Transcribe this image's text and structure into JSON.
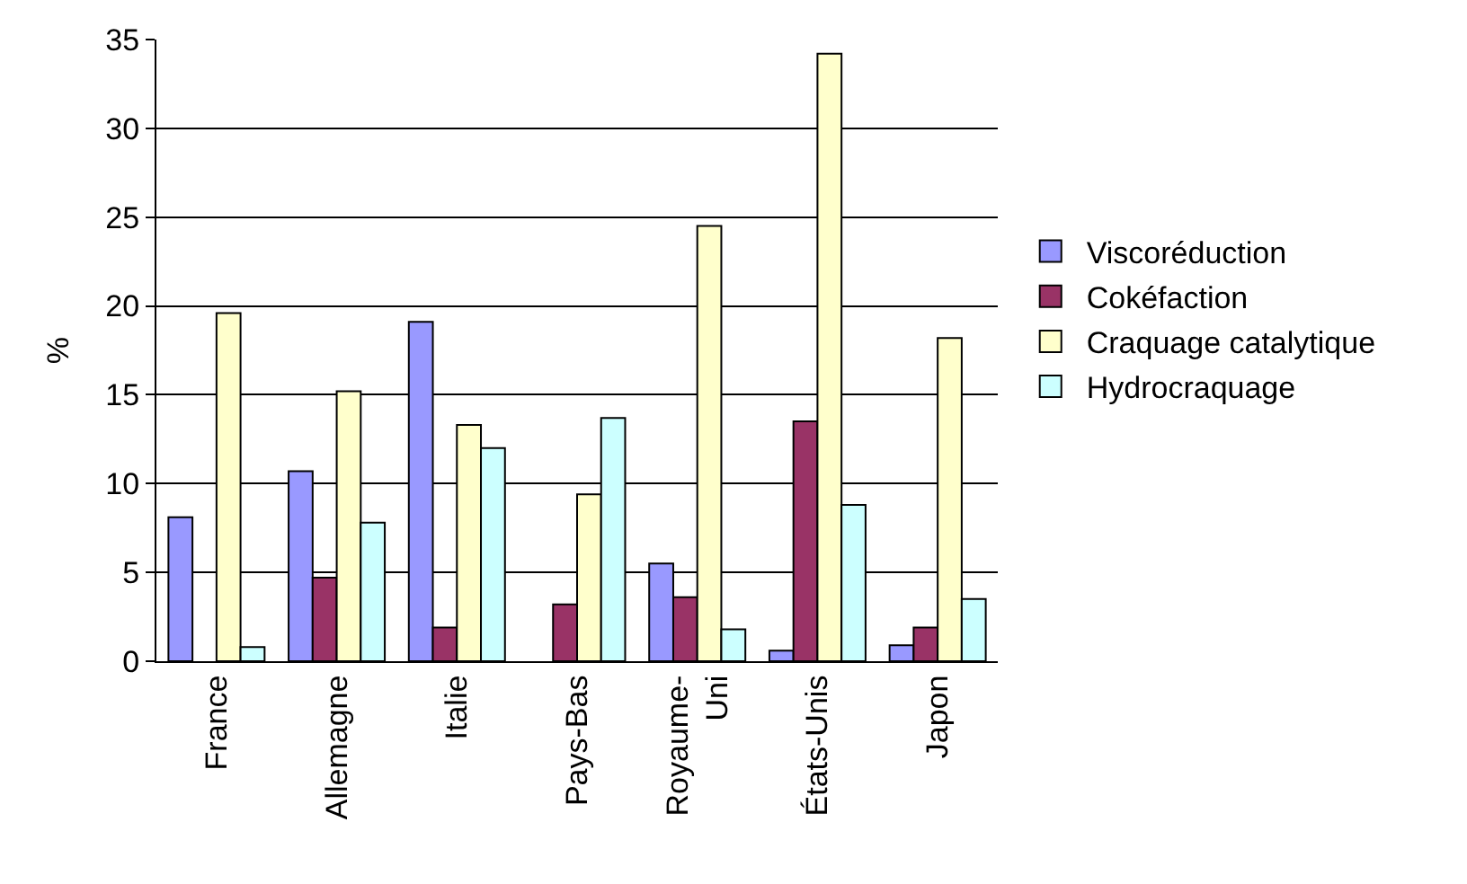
{
  "chart_data": {
    "type": "bar",
    "ylabel": "%",
    "categories": [
      "France",
      "Allemagne",
      "Italie",
      "Pays-Bas",
      "Royaume-Uni",
      "États-Unis",
      "Japon"
    ],
    "series": [
      {
        "name": "Viscoréduction",
        "color": "#9999ff",
        "values": [
          8.1,
          10.7,
          19.1,
          null,
          5.5,
          0.6,
          0.9
        ]
      },
      {
        "name": "Cokéfaction",
        "color": "#993366",
        "values": [
          null,
          4.7,
          1.9,
          3.2,
          3.6,
          13.5,
          1.9
        ]
      },
      {
        "name": "Craquage catalytique",
        "color": "#ffffcc",
        "values": [
          19.6,
          15.2,
          13.3,
          9.4,
          24.5,
          34.2,
          18.2
        ]
      },
      {
        "name": "Hydrocraquage",
        "color": "#ccffff",
        "values": [
          0.8,
          7.8,
          12.0,
          13.7,
          1.8,
          8.8,
          3.5
        ]
      }
    ],
    "ylim": [
      0,
      35
    ],
    "yticks": [
      0,
      5,
      10,
      15,
      20,
      25,
      30,
      35
    ],
    "grid": "y",
    "legend": "right"
  }
}
